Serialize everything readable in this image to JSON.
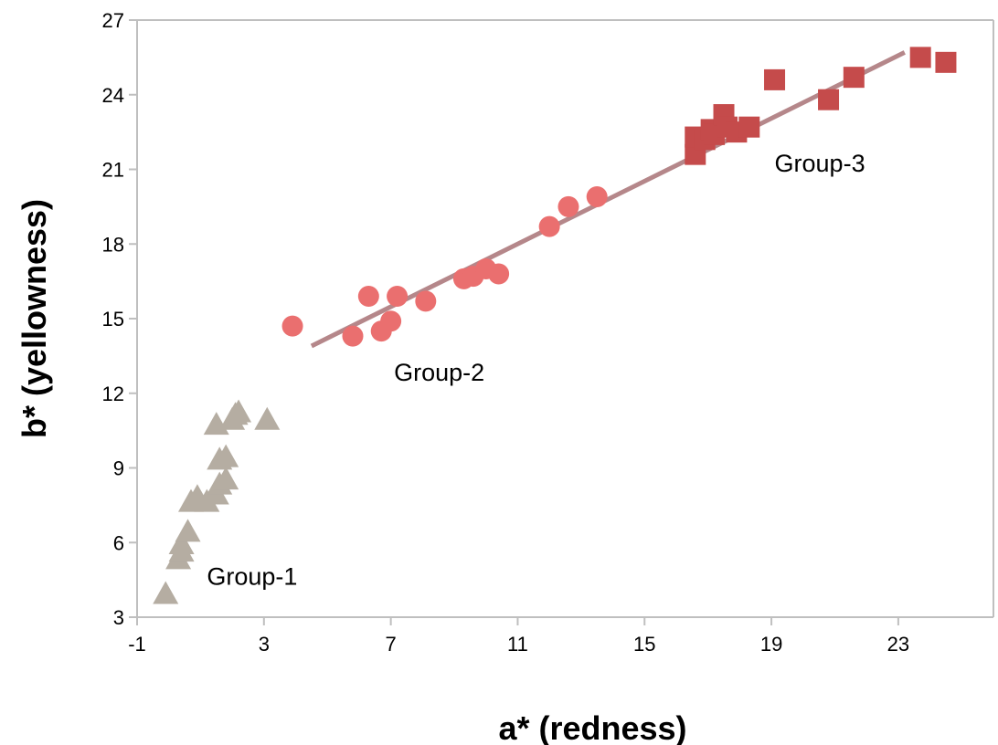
{
  "chart_data": {
    "type": "scatter",
    "xlabel": "a* (redness)",
    "ylabel": "b* (yellowness)",
    "xlim": [
      -1,
      26
    ],
    "ylim": [
      3,
      27
    ],
    "xticks": [
      -1,
      3,
      7,
      11,
      15,
      19,
      23
    ],
    "yticks": [
      3,
      6,
      9,
      12,
      15,
      18,
      21,
      24,
      27
    ],
    "grid": false,
    "series": [
      {
        "marker": "triangle",
        "color": "#b5ada2",
        "points": [
          [
            -0.1,
            3.9
          ],
          [
            0.3,
            5.3
          ],
          [
            0.4,
            5.6
          ],
          [
            0.4,
            5.9
          ],
          [
            0.6,
            6.4
          ],
          [
            0.7,
            7.6
          ],
          [
            0.9,
            7.8
          ],
          [
            1.2,
            7.6
          ],
          [
            1.5,
            7.9
          ],
          [
            1.6,
            8.3
          ],
          [
            1.8,
            8.5
          ],
          [
            1.6,
            9.3
          ],
          [
            1.8,
            9.4
          ],
          [
            1.5,
            10.7
          ],
          [
            2.0,
            10.9
          ],
          [
            2.1,
            11.1
          ],
          [
            2.2,
            11.2
          ],
          [
            3.1,
            10.9
          ]
        ]
      },
      {
        "marker": "circle",
        "color": "#ea6f6f",
        "points": [
          [
            3.9,
            14.7
          ],
          [
            5.8,
            14.3
          ],
          [
            6.3,
            15.9
          ],
          [
            6.7,
            14.5
          ],
          [
            7.0,
            14.9
          ],
          [
            7.2,
            15.9
          ],
          [
            8.1,
            15.7
          ],
          [
            9.3,
            16.6
          ],
          [
            9.6,
            16.7
          ],
          [
            10.0,
            17.0
          ],
          [
            10.4,
            16.8
          ],
          [
            12.0,
            18.7
          ],
          [
            12.6,
            19.5
          ],
          [
            13.5,
            19.9
          ]
        ]
      },
      {
        "marker": "square",
        "color": "#c54b4b",
        "points": [
          [
            16.6,
            21.6
          ],
          [
            16.6,
            22.3
          ],
          [
            16.9,
            22.2
          ],
          [
            17.1,
            22.6
          ],
          [
            17.2,
            22.4
          ],
          [
            17.5,
            23.2
          ],
          [
            17.6,
            22.7
          ],
          [
            17.9,
            22.5
          ],
          [
            18.3,
            22.7
          ],
          [
            19.1,
            24.6
          ],
          [
            20.8,
            23.8
          ],
          [
            21.6,
            24.7
          ],
          [
            23.7,
            25.5
          ],
          [
            24.5,
            25.3
          ]
        ]
      }
    ],
    "trendline": {
      "color": "#b5878a",
      "x": [
        4.5,
        23.2
      ],
      "y": [
        13.9,
        25.7
      ]
    },
    "annotations": [
      {
        "text": "Group-1",
        "x": 1.2,
        "y": 4.3
      },
      {
        "text": "Group-2",
        "x": 7.1,
        "y": 12.5
      },
      {
        "text": "Group-3",
        "x": 19.1,
        "y": 20.9
      }
    ]
  }
}
